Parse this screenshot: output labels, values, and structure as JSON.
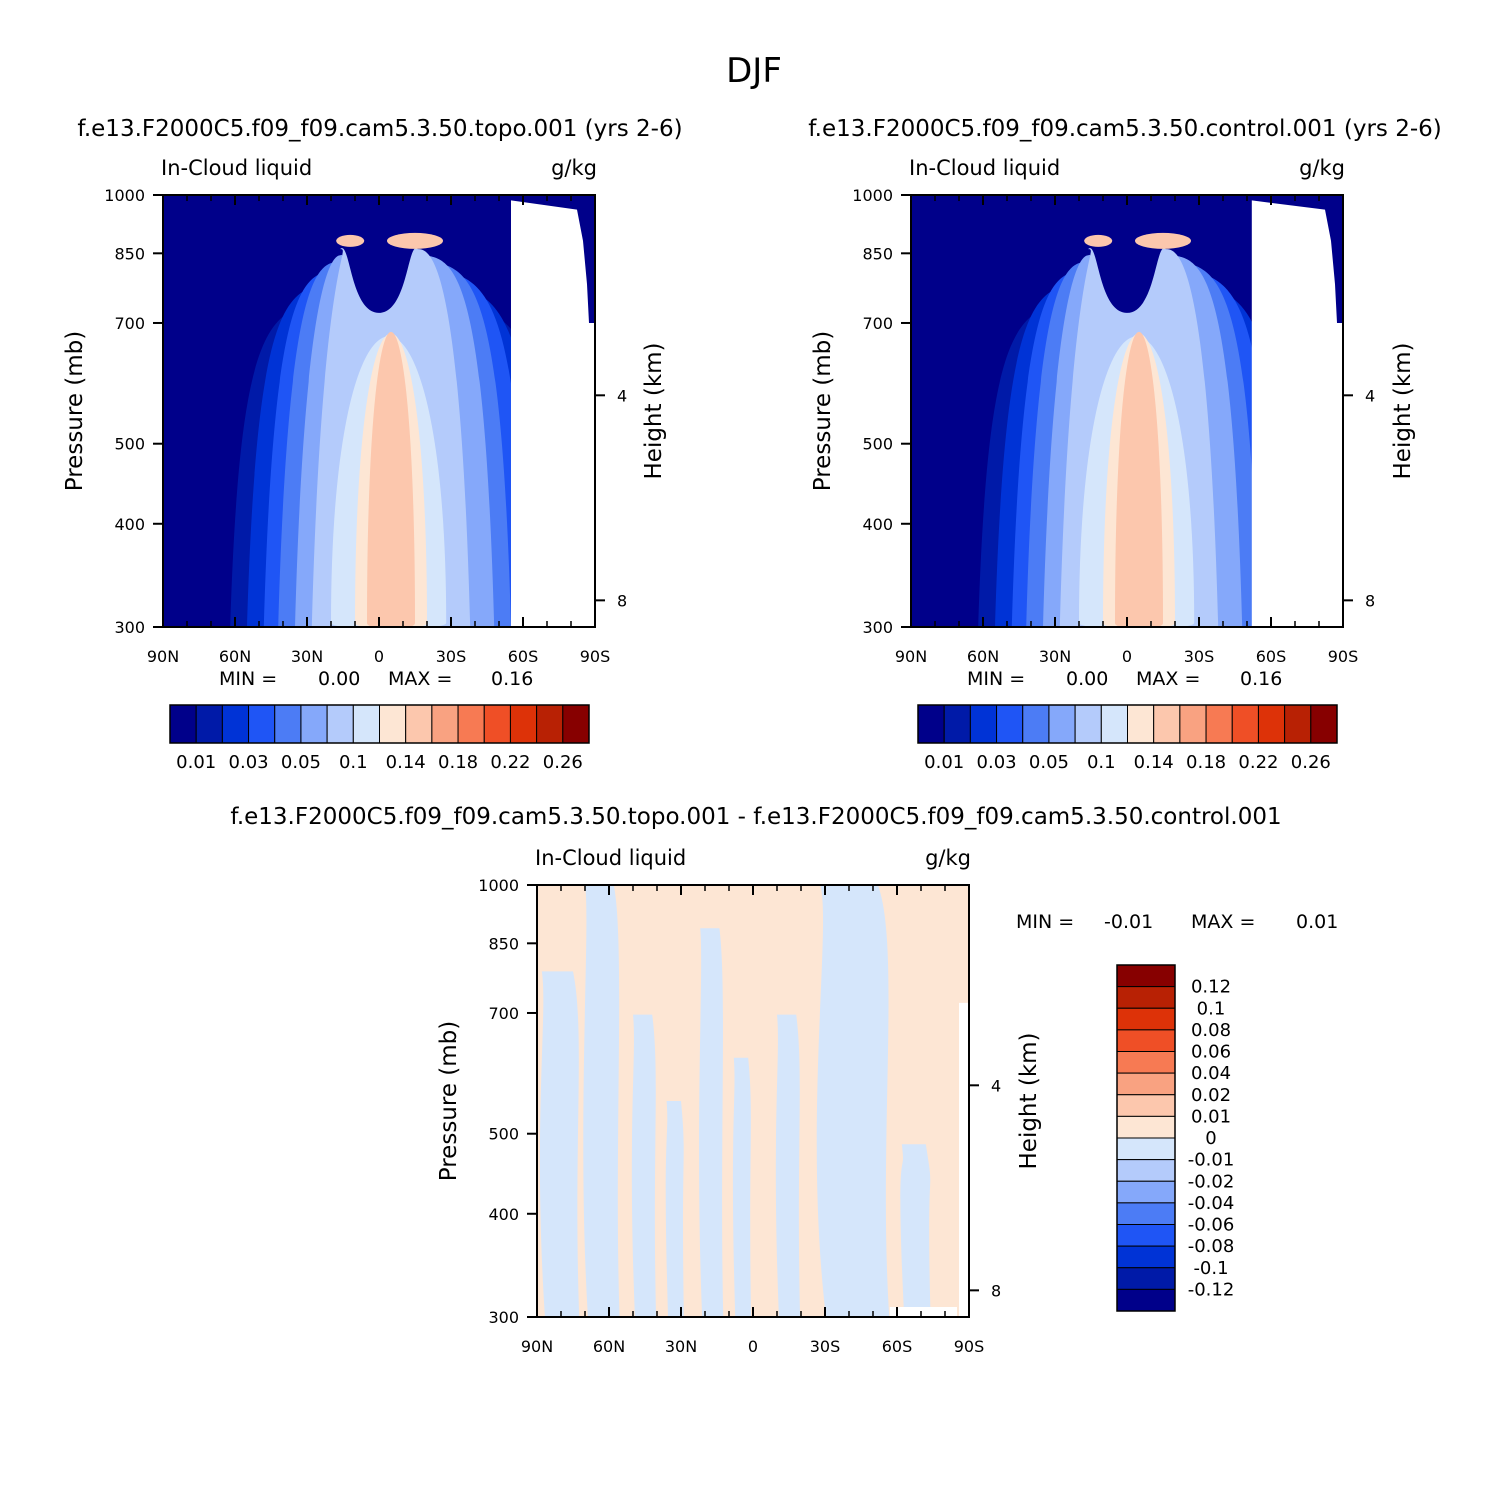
{
  "figure": {
    "title": "DJF",
    "colors": {
      "abs_levels": [
        "#00008a",
        "#001aa8",
        "#0033d6",
        "#1f55f5",
        "#4c7cf5",
        "#85a8fa",
        "#b4cbfb",
        "#d5e6fb",
        "#fde6d4",
        "#fcc7ad",
        "#f9a281",
        "#f77a53",
        "#ef4f26",
        "#dd3208",
        "#b82104",
        "#870000"
      ],
      "diff_levels": [
        "#00008a",
        "#001aa8",
        "#0033d6",
        "#1f55f5",
        "#4c7cf5",
        "#85a8fa",
        "#b4cbfb",
        "#d5e6fb",
        "#fde6d4",
        "#fcc7ad",
        "#f9a281",
        "#f77a53",
        "#ef4f26",
        "#dd3208",
        "#b82104",
        "#870000"
      ]
    }
  },
  "chart_data": [
    {
      "type": "heatmap",
      "case_title": "f.e13.F2000C5.f09_f09.cam5.3.50.topo.001 (yrs 2-6)",
      "left_string": "In-Cloud liquid",
      "right_string": "g/kg",
      "xlabel": "",
      "ylabel": "Pressure (mb)",
      "ylabel_right": "Height (km)",
      "x_ticks": [
        "90N",
        "60N",
        "30N",
        "0",
        "30S",
        "60S",
        "90S"
      ],
      "y_ticks": [
        "300",
        "400",
        "500",
        "700",
        "850",
        "1000"
      ],
      "y_ticks_right": [
        "8",
        "4"
      ],
      "ylim": [
        1000,
        300
      ],
      "xlim": [
        90,
        -90
      ],
      "min_label": "MIN =",
      "min_value": "0.00",
      "max_label": "MAX =",
      "max_value": "0.16",
      "colorbar_labels": [
        "0.01",
        "0.03",
        "0.05",
        "0.1",
        "0.14",
        "0.18",
        "0.22",
        "0.26"
      ],
      "colorbar_levels": [
        0.005,
        0.01,
        0.02,
        0.03,
        0.04,
        0.05,
        0.07,
        0.1,
        0.12,
        0.14,
        0.16,
        0.18,
        0.2,
        0.22,
        0.26
      ]
    },
    {
      "type": "heatmap",
      "case_title": "f.e13.F2000C5.f09_f09.cam5.3.50.control.001 (yrs 2-6)",
      "left_string": "In-Cloud liquid",
      "right_string": "g/kg",
      "xlabel": "",
      "ylabel": "Pressure (mb)",
      "ylabel_right": "Height (km)",
      "x_ticks": [
        "90N",
        "60N",
        "30N",
        "0",
        "30S",
        "60S",
        "90S"
      ],
      "y_ticks": [
        "300",
        "400",
        "500",
        "700",
        "850",
        "1000"
      ],
      "y_ticks_right": [
        "8",
        "4"
      ],
      "ylim": [
        1000,
        300
      ],
      "xlim": [
        90,
        -90
      ],
      "min_label": "MIN =",
      "min_value": "0.00",
      "max_label": "MAX =",
      "max_value": "0.16",
      "colorbar_labels": [
        "0.01",
        "0.03",
        "0.05",
        "0.1",
        "0.14",
        "0.18",
        "0.22",
        "0.26"
      ],
      "colorbar_levels": [
        0.005,
        0.01,
        0.02,
        0.03,
        0.04,
        0.05,
        0.07,
        0.1,
        0.12,
        0.14,
        0.16,
        0.18,
        0.2,
        0.22,
        0.26
      ]
    },
    {
      "type": "heatmap",
      "case_title": "f.e13.F2000C5.f09_f09.cam5.3.50.topo.001 - f.e13.F2000C5.f09_f09.cam5.3.50.control.001",
      "left_string": "In-Cloud liquid",
      "right_string": "g/kg",
      "xlabel": "",
      "ylabel": "Pressure (mb)",
      "ylabel_right": "Height (km)",
      "x_ticks": [
        "90N",
        "60N",
        "30N",
        "0",
        "30S",
        "60S",
        "90S"
      ],
      "y_ticks": [
        "300",
        "400",
        "500",
        "700",
        "850",
        "1000"
      ],
      "y_ticks_right": [
        "8",
        "4"
      ],
      "ylim": [
        1000,
        300
      ],
      "xlim": [
        90,
        -90
      ],
      "min_label": "MIN =",
      "min_value": "-0.01",
      "max_label": "MAX =",
      "max_value": "0.01",
      "colorbar_labels": [
        "0.12",
        "0.1",
        "0.08",
        "0.06",
        "0.04",
        "0.02",
        "0.01",
        "0",
        "-0.01",
        "-0.02",
        "-0.04",
        "-0.06",
        "-0.08",
        "-0.1",
        "-0.12"
      ]
    }
  ]
}
